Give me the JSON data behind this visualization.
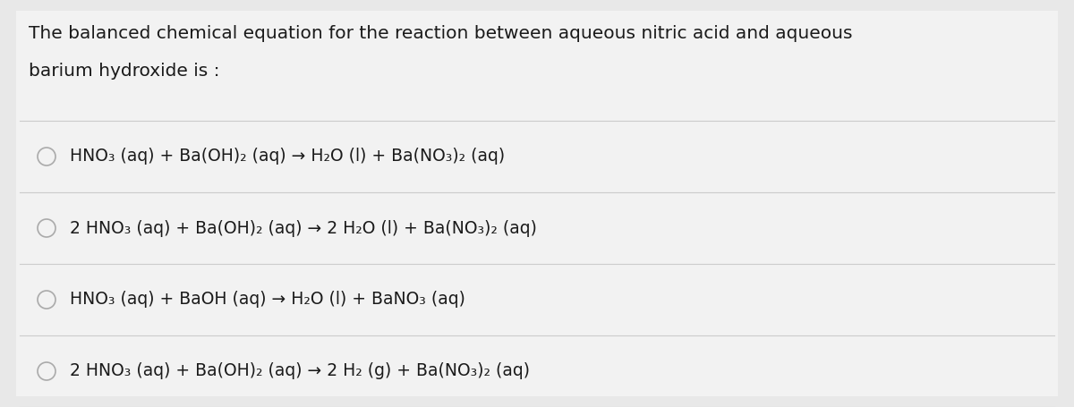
{
  "background_color": "#e8e8e8",
  "panel_color": "#f2f2f2",
  "title_text_line1": "The balanced chemical equation for the reaction between aqueous nitric acid and aqueous",
  "title_text_line2": "barium hydroxide is :",
  "title_fontsize": 14.5,
  "option_fontsize": 13.5,
  "options": [
    "HNO₃ (aq) + Ba(OH)₂ (aq) → H₂O (l) + Ba(NO₃)₂ (aq)",
    "2 HNO₃ (aq) + Ba(OH)₂ (aq) → 2 H₂O (l) + Ba(NO₃)₂ (aq)",
    "HNO₃ (aq) + BaOH (aq) → H₂O (l) + BaNO₃ (aq)",
    "2 HNO₃ (aq) + Ba(OH)₂ (aq) → 2 H₂ (g) + Ba(NO₃)₂ (aq)"
  ],
  "circle_color": "#aaaaaa",
  "line_color": "#cccccc",
  "text_color": "#1a1a1a",
  "fig_width": 12.0,
  "fig_height": 4.55,
  "dpi": 100
}
